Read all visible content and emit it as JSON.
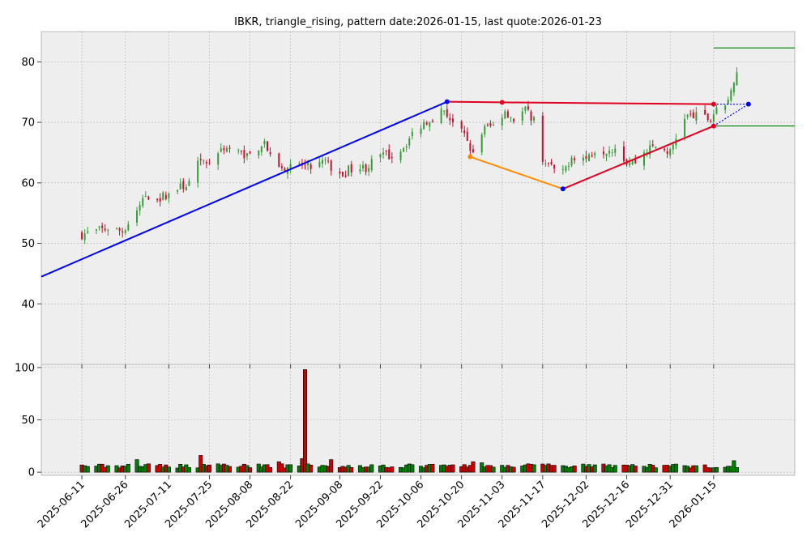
{
  "chart_data": {
    "type": "candlestick",
    "title": "IBKR, triangle_rising, pattern date:2026-01-15, last quote:2026-01-23",
    "price_panel": {
      "ylim": [
        30,
        85
      ],
      "yticks": [
        40,
        50,
        60,
        70,
        80
      ],
      "grid": true
    },
    "volume_panel": {
      "ylim": [
        -3,
        103
      ],
      "yticks": [
        0,
        50,
        100
      ],
      "grid": true
    },
    "x_axis": {
      "start_date": "2025-05-28",
      "end_date": "2026-02-12",
      "tick_labels": [
        "2025-06-11",
        "2025-06-26",
        "2025-07-11",
        "2025-07-25",
        "2025-08-08",
        "2025-08-22",
        "2025-09-08",
        "2025-09-22",
        "2025-10-06",
        "2025-10-20",
        "2025-11-03",
        "2025-11-17",
        "2025-12-02",
        "2025-12-16",
        "2025-12-31",
        "2026-01-15"
      ]
    },
    "price_anchors": [
      [
        "2025-06-11",
        51.5
      ],
      [
        "2025-06-16",
        52.0
      ],
      [
        "2025-06-20",
        52.5
      ],
      [
        "2025-06-25",
        52.0
      ],
      [
        "2025-06-30",
        55.5
      ],
      [
        "2025-07-03",
        58.0
      ],
      [
        "2025-07-08",
        57.5
      ],
      [
        "2025-07-14",
        59.0
      ],
      [
        "2025-07-18",
        60.0
      ],
      [
        "2025-07-21",
        63.0
      ],
      [
        "2025-07-25",
        63.5
      ],
      [
        "2025-07-30",
        66.0
      ],
      [
        "2025-08-04",
        65.0
      ],
      [
        "2025-08-08",
        64.5
      ],
      [
        "2025-08-13",
        67.0
      ],
      [
        "2025-08-15",
        64.0
      ],
      [
        "2025-08-20",
        62.5
      ],
      [
        "2025-08-25",
        63.0
      ],
      [
        "2025-08-29",
        62.5
      ],
      [
        "2025-09-03",
        63.5
      ],
      [
        "2025-09-08",
        61.0
      ],
      [
        "2025-09-12",
        62.5
      ],
      [
        "2025-09-17",
        62.5
      ],
      [
        "2025-09-22",
        64.5
      ],
      [
        "2025-09-26",
        64.5
      ],
      [
        "2025-09-30",
        66.0
      ],
      [
        "2025-10-03",
        68.0
      ],
      [
        "2025-10-07",
        70.0
      ],
      [
        "2025-10-10",
        71.0
      ],
      [
        "2025-10-14",
        72.0
      ],
      [
        "2025-10-17",
        70.0
      ],
      [
        "2025-10-22",
        67.0
      ],
      [
        "2025-10-24",
        64.5
      ],
      [
        "2025-10-28",
        69.0
      ],
      [
        "2025-10-31",
        69.5
      ],
      [
        "2025-11-04",
        72.0
      ],
      [
        "2025-11-07",
        70.5
      ],
      [
        "2025-11-11",
        72.0
      ],
      [
        "2025-11-14",
        70.5
      ],
      [
        "2025-11-17",
        64.0
      ],
      [
        "2025-11-20",
        62.5
      ],
      [
        "2025-11-24",
        61.5
      ],
      [
        "2025-11-27",
        64.5
      ],
      [
        "2025-12-02",
        64.0
      ],
      [
        "2025-12-05",
        65.5
      ],
      [
        "2025-12-09",
        65.5
      ],
      [
        "2025-12-12",
        66.0
      ],
      [
        "2025-12-16",
        63.5
      ],
      [
        "2025-12-19",
        63.5
      ],
      [
        "2025-12-23",
        65.5
      ],
      [
        "2025-12-26",
        66.0
      ],
      [
        "2025-12-31",
        65.0
      ],
      [
        "2026-01-05",
        71.0
      ],
      [
        "2026-01-09",
        71.0
      ],
      [
        "2026-01-14",
        70.5
      ],
      [
        "2026-01-15",
        71.5
      ],
      [
        "2026-01-16",
        72.5
      ],
      [
        "2026-01-20",
        73.0
      ],
      [
        "2026-01-21",
        75.0
      ],
      [
        "2026-01-22",
        77.0
      ],
      [
        "2026-01-23",
        78.0
      ]
    ],
    "volume_baseline": 4,
    "volume_spikes": [
      [
        "2025-06-30",
        12
      ],
      [
        "2025-07-22",
        16
      ],
      [
        "2025-08-18",
        10
      ],
      [
        "2025-08-26",
        13
      ],
      [
        "2025-08-27",
        98
      ],
      [
        "2025-09-05",
        12
      ],
      [
        "2025-10-24",
        10
      ],
      [
        "2025-10-27",
        9
      ],
      [
        "2026-01-22",
        11
      ]
    ],
    "overlays": {
      "support_line": {
        "color": "#0000ff",
        "points": [
          [
            "2025-05-28",
            44.5
          ],
          [
            "2025-10-15",
            73.4
          ]
        ]
      },
      "resistance_line": {
        "color": "#e00020",
        "points": [
          [
            "2025-10-15",
            73.4
          ],
          [
            "2025-11-03",
            73.3
          ],
          [
            "2026-01-15",
            73.0
          ]
        ]
      },
      "rising_line": {
        "color": "#e00020",
        "points": [
          [
            "2025-11-24",
            59.0
          ],
          [
            "2026-01-15",
            69.4
          ]
        ]
      },
      "orange_line": {
        "color": "#ff8c00",
        "points": [
          [
            "2025-10-23",
            64.3
          ],
          [
            "2025-11-24",
            59.0
          ]
        ]
      },
      "projection_upper": {
        "color": "#0000ff",
        "dashed": true,
        "points": [
          [
            "2026-01-15",
            73.0
          ],
          [
            "2026-01-27",
            73.0
          ]
        ]
      },
      "projection_lower": {
        "color": "#0000ff",
        "dashed": true,
        "points": [
          [
            "2026-01-15",
            69.4
          ],
          [
            "2026-01-27",
            73.0
          ]
        ]
      },
      "target_level": {
        "color": "#008000",
        "value": 82.3,
        "from": "2026-01-15"
      },
      "stop_level": {
        "color": "#008000",
        "value": 69.4,
        "from": "2026-01-15"
      }
    },
    "colors": {
      "up": "#3a9a3a",
      "down": "#c8102e",
      "volume_up": "#008000",
      "volume_down": "#cc0000",
      "panel_bg": "#eeeeee",
      "grid": "#b0b0b0",
      "frame": "#bcbcbc"
    }
  }
}
